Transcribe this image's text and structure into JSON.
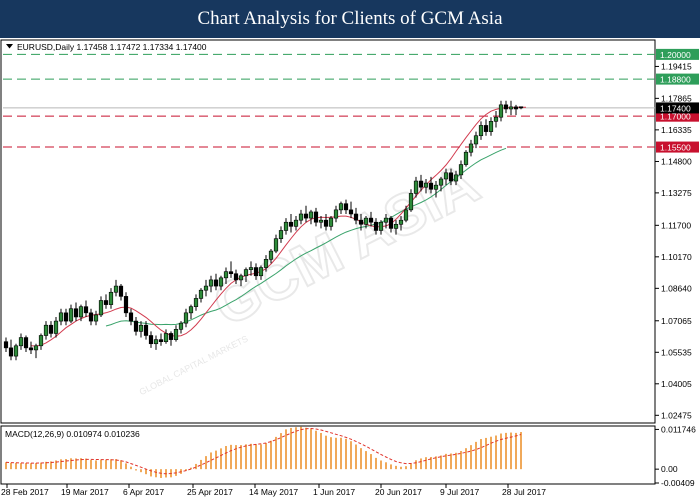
{
  "header": {
    "title": "Chart Analysis for Clients of GCM Asia"
  },
  "colors": {
    "banner": "#17375e",
    "bull": "#000000",
    "bear": "#000000",
    "body_bull": "#2e8b3a",
    "ma_fast": "#d23b4f",
    "ma_slow": "#3aa36b",
    "resistance": "#2e9e5a",
    "support": "#c8102e",
    "macd_hist": "#f0a95a",
    "macd_signal": "#e0342c",
    "current_price": "#000000"
  },
  "watermark": {
    "text": "GCM ASIA",
    "subtext": "GLOBAL CAPITAL MARKETS"
  },
  "chart_data": {
    "type": "candlestick",
    "symbol_header": "EURUSD,Daily  1.17458 1.17472 1.17334 1.17400",
    "ohlc_last": {
      "open": 1.17458,
      "high": 1.17472,
      "low": 1.17334,
      "close": 1.174
    },
    "y_range": [
      1.0215,
      1.2065
    ],
    "y_ticks": [
      "1.19415",
      "1.17865",
      "1.16335",
      "1.14800",
      "1.13275",
      "1.11700",
      "1.10170",
      "1.08640",
      "1.07065",
      "1.05535",
      "1.04005",
      "1.02475"
    ],
    "x_ticks": [
      "28 Feb 2017",
      "19 Mar 2017",
      "6 Apr 2017",
      "25 Apr 2017",
      "14 May 2017",
      "1 Jun 2017",
      "20 Jun 2017",
      "9 Jul 2017",
      "28 Jul 2017"
    ],
    "levels": [
      {
        "value": 1.2,
        "label": "1.20000",
        "kind": "resistance"
      },
      {
        "value": 1.188,
        "label": "1.18800",
        "kind": "resistance"
      },
      {
        "value": 1.17,
        "label": "1.17000",
        "kind": "support"
      },
      {
        "value": 1.155,
        "label": "1.15500",
        "kind": "support"
      }
    ],
    "current_price": {
      "value": 1.174,
      "label": "1.17400"
    },
    "candles": [
      [
        1.0605,
        1.0625,
        1.0555,
        1.0575
      ],
      [
        1.0575,
        1.0615,
        1.0515,
        1.0535
      ],
      [
        1.0535,
        1.0595,
        1.0515,
        1.0585
      ],
      [
        1.0585,
        1.0645,
        1.0565,
        1.0625
      ],
      [
        1.0625,
        1.0635,
        1.0555,
        1.0575
      ],
      [
        1.0575,
        1.0605,
        1.0545,
        1.0565
      ],
      [
        1.0565,
        1.0595,
        1.0525,
        1.0585
      ],
      [
        1.0585,
        1.0645,
        1.0565,
        1.0635
      ],
      [
        1.0635,
        1.0705,
        1.0615,
        1.0685
      ],
      [
        1.0685,
        1.0705,
        1.0625,
        1.0645
      ],
      [
        1.0645,
        1.0725,
        1.0625,
        1.0705
      ],
      [
        1.0705,
        1.0765,
        1.0685,
        1.0745
      ],
      [
        1.0745,
        1.0765,
        1.0685,
        1.0705
      ],
      [
        1.0705,
        1.0785,
        1.0695,
        1.0765
      ],
      [
        1.0765,
        1.0795,
        1.0705,
        1.0725
      ],
      [
        1.0725,
        1.0785,
        1.0705,
        1.0775
      ],
      [
        1.0775,
        1.0805,
        1.0725,
        1.0745
      ],
      [
        1.0745,
        1.0765,
        1.0685,
        1.0705
      ],
      [
        1.0705,
        1.0755,
        1.0685,
        1.0735
      ],
      [
        1.0735,
        1.0825,
        1.0725,
        1.0805
      ],
      [
        1.0805,
        1.0835,
        1.0765,
        1.0785
      ],
      [
        1.0785,
        1.0865,
        1.0765,
        1.0845
      ],
      [
        1.0845,
        1.0905,
        1.0825,
        1.0875
      ],
      [
        1.0875,
        1.0885,
        1.0805,
        1.0825
      ],
      [
        1.0825,
        1.0845,
        1.0725,
        1.0745
      ],
      [
        1.0745,
        1.0765,
        1.0685,
        1.0705
      ],
      [
        1.0705,
        1.0725,
        1.0635,
        1.0655
      ],
      [
        1.0655,
        1.0705,
        1.0625,
        1.0685
      ],
      [
        1.0685,
        1.0705,
        1.0615,
        1.0635
      ],
      [
        1.0635,
        1.0655,
        1.0575,
        1.0595
      ],
      [
        1.0595,
        1.0635,
        1.0565,
        1.0615
      ],
      [
        1.0615,
        1.0645,
        1.0585,
        1.0605
      ],
      [
        1.0605,
        1.0665,
        1.0595,
        1.0645
      ],
      [
        1.0645,
        1.0655,
        1.0585,
        1.0615
      ],
      [
        1.0615,
        1.0685,
        1.0605,
        1.0665
      ],
      [
        1.0665,
        1.0705,
        1.0645,
        1.0695
      ],
      [
        1.0695,
        1.0765,
        1.0675,
        1.0745
      ],
      [
        1.0745,
        1.0785,
        1.0715,
        1.0775
      ],
      [
        1.0775,
        1.0835,
        1.0755,
        1.0815
      ],
      [
        1.0815,
        1.0865,
        1.0795,
        1.0855
      ],
      [
        1.0855,
        1.0905,
        1.0825,
        1.0875
      ],
      [
        1.0875,
        1.0925,
        1.0845,
        1.0905
      ],
      [
        1.0905,
        1.0935,
        1.0855,
        1.0875
      ],
      [
        1.0875,
        1.0925,
        1.0855,
        1.0915
      ],
      [
        1.0915,
        1.0965,
        1.0885,
        1.0945
      ],
      [
        1.0945,
        1.0995,
        1.0915,
        1.0935
      ],
      [
        1.0935,
        1.0955,
        1.0885,
        1.0905
      ],
      [
        1.0905,
        1.0935,
        1.0875,
        1.0925
      ],
      [
        1.0925,
        1.0965,
        1.0895,
        1.0955
      ],
      [
        1.0955,
        1.0995,
        1.0925,
        1.0965
      ],
      [
        1.0965,
        1.0985,
        1.0905,
        1.0925
      ],
      [
        1.0925,
        1.0975,
        1.0905,
        1.0965
      ],
      [
        1.0965,
        1.1025,
        1.0945,
        1.1005
      ],
      [
        1.1005,
        1.1055,
        1.0985,
        1.1045
      ],
      [
        1.1045,
        1.1125,
        1.1035,
        1.1105
      ],
      [
        1.1105,
        1.1165,
        1.1085,
        1.1145
      ],
      [
        1.1145,
        1.1205,
        1.1125,
        1.1185
      ],
      [
        1.1185,
        1.1225,
        1.1135,
        1.1165
      ],
      [
        1.1165,
        1.1215,
        1.1145,
        1.1195
      ],
      [
        1.1195,
        1.1245,
        1.1175,
        1.1225
      ],
      [
        1.1225,
        1.1265,
        1.1185,
        1.1205
      ],
      [
        1.1205,
        1.1245,
        1.1175,
        1.1235
      ],
      [
        1.1235,
        1.1255,
        1.1165,
        1.1185
      ],
      [
        1.1185,
        1.1215,
        1.1155,
        1.1195
      ],
      [
        1.1195,
        1.1225,
        1.1145,
        1.1165
      ],
      [
        1.1165,
        1.1215,
        1.1145,
        1.1205
      ],
      [
        1.1205,
        1.1265,
        1.1185,
        1.1245
      ],
      [
        1.1245,
        1.1285,
        1.1225,
        1.1275
      ],
      [
        1.1275,
        1.1295,
        1.1225,
        1.1245
      ],
      [
        1.1245,
        1.1285,
        1.1205,
        1.1225
      ],
      [
        1.1225,
        1.1255,
        1.1175,
        1.1195
      ],
      [
        1.1195,
        1.1225,
        1.1145,
        1.1175
      ],
      [
        1.1175,
        1.1215,
        1.1155,
        1.1205
      ],
      [
        1.1205,
        1.1235,
        1.1165,
        1.1185
      ],
      [
        1.1185,
        1.1205,
        1.1125,
        1.1145
      ],
      [
        1.1145,
        1.1195,
        1.1125,
        1.1185
      ],
      [
        1.1185,
        1.1225,
        1.1155,
        1.1205
      ],
      [
        1.1205,
        1.1215,
        1.1135,
        1.1155
      ],
      [
        1.1155,
        1.1195,
        1.1125,
        1.1175
      ],
      [
        1.1175,
        1.1215,
        1.1145,
        1.1195
      ],
      [
        1.1195,
        1.1265,
        1.1185,
        1.1245
      ],
      [
        1.1245,
        1.1345,
        1.1235,
        1.1325
      ],
      [
        1.1325,
        1.1405,
        1.1305,
        1.1385
      ],
      [
        1.1385,
        1.1415,
        1.1335,
        1.1355
      ],
      [
        1.1355,
        1.1395,
        1.1325,
        1.1375
      ],
      [
        1.1375,
        1.1405,
        1.1325,
        1.1345
      ],
      [
        1.1345,
        1.1385,
        1.1305,
        1.1365
      ],
      [
        1.1365,
        1.1405,
        1.1335,
        1.1395
      ],
      [
        1.1395,
        1.1445,
        1.1365,
        1.1425
      ],
      [
        1.1425,
        1.1445,
        1.1365,
        1.1385
      ],
      [
        1.1385,
        1.1435,
        1.1365,
        1.1415
      ],
      [
        1.1415,
        1.1485,
        1.1395,
        1.1465
      ],
      [
        1.1465,
        1.1535,
        1.1455,
        1.1525
      ],
      [
        1.1525,
        1.1585,
        1.1505,
        1.1565
      ],
      [
        1.1565,
        1.1625,
        1.1545,
        1.1605
      ],
      [
        1.1605,
        1.1675,
        1.1585,
        1.1655
      ],
      [
        1.1655,
        1.1685,
        1.1605,
        1.1625
      ],
      [
        1.1625,
        1.1695,
        1.1605,
        1.1675
      ],
      [
        1.1675,
        1.1725,
        1.1645,
        1.1695
      ],
      [
        1.1695,
        1.1775,
        1.1675,
        1.1755
      ],
      [
        1.1755,
        1.1775,
        1.1715,
        1.1735
      ],
      [
        1.1735,
        1.1775,
        1.1705,
        1.1745
      ],
      [
        1.1745,
        1.1755,
        1.1705,
        1.1735
      ],
      [
        1.17458,
        1.17472,
        1.17334,
        1.174
      ]
    ],
    "ma_fast": {
      "start_index": 5,
      "values": [
        1.0585,
        1.0584,
        1.0588,
        1.0599,
        1.0614,
        1.0631,
        1.0652,
        1.0673,
        1.0689,
        1.0705,
        1.0717,
        1.0727,
        1.0733,
        1.0737,
        1.074,
        1.0745,
        1.0753,
        1.0763,
        1.0771,
        1.0773,
        1.0768,
        1.0755,
        1.0739,
        1.0723,
        1.0703,
        1.0681,
        1.0661,
        1.0646,
        1.0635,
        1.0631,
        1.0634,
        1.0644,
        1.0662,
        1.0686,
        1.0714,
        1.0745,
        1.0776,
        1.0807,
        1.0837,
        1.0864,
        1.0888,
        1.0905,
        1.0917,
        1.0927,
        1.0932,
        1.0938,
        1.0946,
        1.096,
        1.0982,
        1.101,
        1.1042,
        1.1075,
        1.1106,
        1.1136,
        1.1163,
        1.1184,
        1.1199,
        1.1207,
        1.1209,
        1.1208,
        1.1209,
        1.1212,
        1.1215,
        1.1215,
        1.1209,
        1.1199,
        1.1187,
        1.1176,
        1.1167,
        1.1163,
        1.1163,
        1.1167,
        1.1178,
        1.1199,
        1.1225,
        1.1254,
        1.1283,
        1.1312,
        1.134,
        1.1367,
        1.1391,
        1.1413,
        1.1436,
        1.1463,
        1.1494,
        1.1529,
        1.1563,
        1.1596,
        1.1628,
        1.1659,
        1.1687,
        1.1708,
        1.1724,
        1.1733,
        1.1738,
        1.1741,
        1.1742,
        1.1743,
        1.1743,
        1.1743
      ]
    },
    "ma_slow": {
      "start_index": 20,
      "values": [
        1.0681,
        1.0688,
        1.0697,
        1.0705,
        1.0707,
        1.0704,
        1.07,
        1.0696,
        1.0694,
        1.069,
        1.0689,
        1.0688,
        1.0689,
        1.0688,
        1.0689,
        1.0694,
        1.0701,
        1.0711,
        1.0722,
        1.0734,
        1.0744,
        1.0752,
        1.0759,
        1.0769,
        1.0782,
        1.0796,
        1.0809,
        1.0824,
        1.0841,
        1.0858,
        1.0874,
        1.0888,
        1.0904,
        1.092,
        1.0936,
        1.0954,
        1.0973,
        1.099,
        1.1007,
        1.1022,
        1.1035,
        1.1047,
        1.106,
        1.1072,
        1.1085,
        1.1099,
        1.1113,
        1.1126,
        1.1137,
        1.1146,
        1.1154,
        1.116,
        1.1165,
        1.117,
        1.1177,
        1.1185,
        1.1195,
        1.1208,
        1.1222,
        1.1236,
        1.1249,
        1.126,
        1.127,
        1.1281,
        1.1293,
        1.1308,
        1.1325,
        1.1344,
        1.1364,
        1.1383,
        1.1401,
        1.142,
        1.1438,
        1.1456,
        1.1473,
        1.1488,
        1.15,
        1.1512,
        1.1524,
        1.1535,
        1.1544
      ]
    },
    "macd": {
      "label": "MACD(12,26,9) 0.010974 0.010236",
      "y_range": [
        -0.00409,
        0.01246
      ],
      "y_ticks": [
        "0.011746",
        "0.00",
        "-0.00409"
      ],
      "histogram": [
        0.002041,
        0.00189,
        0.00186,
        0.001799,
        0.001788,
        0.001763,
        0.001787,
        0.001924,
        0.002174,
        0.002296,
        0.002575,
        0.002908,
        0.002989,
        0.003213,
        0.00317,
        0.003241,
        0.003128,
        0.002738,
        0.002591,
        0.002805,
        0.002772,
        0.002902,
        0.002972,
        0.002601,
        0.001717,
        0.000722,
        -0.000383,
        -0.000887,
        -0.001487,
        -0.002151,
        -0.002393,
        -0.002603,
        -0.002459,
        -0.002413,
        -0.001989,
        -0.001383,
        -0.000457,
        0.000444,
        0.001545,
        0.002729,
        0.003859,
        0.004933,
        0.005484,
        0.006149,
        0.006843,
        0.007186,
        0.007107,
        0.007103,
        0.007327,
        0.007484,
        0.007364,
        0.007323,
        0.007716,
        0.008403,
        0.009537,
        0.01066,
        0.011765,
        0.012181,
        0.012385,
        0.012507,
        0.012234,
        0.011947,
        0.011359,
        0.010698,
        0.009892,
        0.009451,
        0.009267,
        0.009288,
        0.008952,
        0.008261,
        0.007291,
        0.006208,
        0.005346,
        0.004462,
        0.003333,
        0.002565,
        0.002031,
        0.001405,
        0.000975,
        0.000708,
        0.000873,
        0.001631,
        0.002636,
        0.003164,
        0.003536,
        0.003597,
        0.003776,
        0.004034,
        0.004523,
        0.004622,
        0.004839,
        0.005372,
        0.006202,
        0.007102,
        0.008064,
        0.008906,
        0.009231,
        0.009587,
        0.009943,
        0.010535,
        0.010721,
        0.010818,
        0.010714,
        0.010974
      ],
      "signal": [
        0.002041,
        0.001935,
        0.001883,
        0.00184,
        0.001813,
        0.001792,
        0.001792,
        0.001817,
        0.001881,
        0.001973,
        0.002101,
        0.002265,
        0.002419,
        0.00257,
        0.002717,
        0.002835,
        0.00289,
        0.002892,
        0.002849,
        0.002827,
        0.002826,
        0.002799,
        0.00271,
        0.002502,
        0.002143,
        0.001646,
        0.001124,
        0.000574,
        2.5e-05,
        -0.000479,
        -0.000918,
        -0.001214,
        -0.001366,
        -0.001297,
        -0.001103,
        -0.000788,
        -0.000414,
        5.2e-05,
        0.000608,
        0.001234,
        0.001916,
        0.00261,
        0.003329,
        0.004065,
        0.004776,
        0.005448,
        0.006029,
        0.006501,
        0.006874,
        0.007139,
        0.007308,
        0.007484,
        0.007739,
        0.008157,
        0.008701,
        0.009332,
        0.009995,
        0.010633,
        0.01123,
        0.011682,
        0.011955,
        0.012006,
        0.011866,
        0.011567,
        0.011169,
        0.010743,
        0.010307,
        0.009875,
        0.009393,
        0.008847,
        0.008206,
        0.007495,
        0.006748,
        0.005961,
        0.005122,
        0.004324,
        0.003586,
        0.002887,
        0.002253,
        0.001872,
        0.001652,
        0.001666,
        0.001891,
        0.002238,
        0.002631,
        0.003043,
        0.003395,
        0.003697,
        0.003951,
        0.00416,
        0.004394,
        0.004651,
        0.00497,
        0.005337,
        0.005797,
        0.006355,
        0.007007,
        0.007663,
        0.008256,
        0.008765,
        0.009163,
        0.009465,
        0.009834,
        0.010236
      ]
    }
  }
}
